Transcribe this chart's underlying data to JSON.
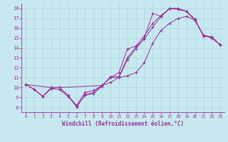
{
  "xlabel": "Windchill (Refroidissement éolien,°C)",
  "xlim": [
    -0.5,
    23.5
  ],
  "ylim": [
    7.5,
    18.5
  ],
  "xticks": [
    0,
    1,
    2,
    3,
    4,
    5,
    6,
    7,
    8,
    9,
    10,
    11,
    12,
    13,
    14,
    15,
    16,
    17,
    18,
    19,
    20,
    21,
    22,
    23
  ],
  "yticks": [
    8,
    9,
    10,
    11,
    12,
    13,
    14,
    15,
    16,
    17,
    18
  ],
  "bg_color": "#c8e8f0",
  "line_color": "#993399",
  "grid_color": "#a8d8e0",
  "lines": [
    {
      "x": [
        0,
        1,
        2,
        3,
        4,
        5,
        6,
        7,
        8,
        9,
        10,
        11,
        12,
        13,
        14,
        15,
        16,
        17,
        18,
        19,
        20,
        21,
        22,
        23
      ],
      "y": [
        10.3,
        9.8,
        9.1,
        10.0,
        10.0,
        9.2,
        8.0,
        9.3,
        9.5,
        10.2,
        10.5,
        11.0,
        12.8,
        13.9,
        15.0,
        17.5,
        17.2,
        18.0,
        18.0,
        17.7,
        16.9,
        15.2,
        15.1,
        14.3
      ]
    },
    {
      "x": [
        0,
        1,
        2,
        3,
        4,
        5,
        6,
        7,
        8,
        9,
        10,
        11,
        12,
        13,
        14,
        15,
        16,
        17,
        18,
        19,
        20,
        21,
        22,
        23
      ],
      "y": [
        10.3,
        9.8,
        9.1,
        9.9,
        9.8,
        9.1,
        8.1,
        9.2,
        9.4,
        10.1,
        11.1,
        11.1,
        13.0,
        14.1,
        14.9,
        16.1,
        17.2,
        18.0,
        17.9,
        17.7,
        16.8,
        15.3,
        15.1,
        14.3
      ]
    },
    {
      "x": [
        0,
        3,
        4,
        9,
        10,
        11,
        12,
        13,
        14,
        15,
        16,
        17,
        18,
        19,
        20,
        21,
        22,
        23
      ],
      "y": [
        10.3,
        10.0,
        10.0,
        10.2,
        11.0,
        11.5,
        13.9,
        14.2,
        15.2,
        16.5,
        17.3,
        18.0,
        18.0,
        17.7,
        16.9,
        15.2,
        15.1,
        14.3
      ]
    },
    {
      "x": [
        0,
        1,
        2,
        3,
        4,
        5,
        6,
        7,
        8,
        9,
        10,
        11,
        12,
        13,
        14,
        15,
        16,
        17,
        18,
        19,
        20,
        21,
        22,
        23
      ],
      "y": [
        10.3,
        9.8,
        9.1,
        9.9,
        9.8,
        9.1,
        8.2,
        9.5,
        9.7,
        10.2,
        11.0,
        11.0,
        11.2,
        11.5,
        12.5,
        14.5,
        15.8,
        16.5,
        17.0,
        17.2,
        16.8,
        15.3,
        15.0,
        14.3
      ]
    }
  ]
}
